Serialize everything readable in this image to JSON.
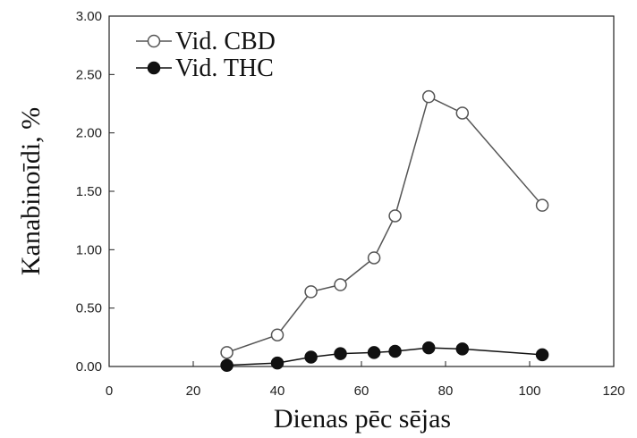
{
  "chart_data": {
    "type": "line",
    "xlabel": "Dienas pēc sējas",
    "ylabel": "Kanabinoīdi, %",
    "xlim": [
      0,
      120
    ],
    "xticks": [
      0,
      20,
      40,
      60,
      80,
      100,
      120
    ],
    "ylim": [
      0,
      3
    ],
    "yticks": [
      {
        "value": 0,
        "label": "0.00"
      },
      {
        "value": 0.5,
        "label": "0.50"
      },
      {
        "value": 1,
        "label": "1.00"
      },
      {
        "value": 1.5,
        "label": "1.50"
      },
      {
        "value": 2,
        "label": "2.00"
      },
      {
        "value": 2.5,
        "label": "2.50"
      },
      {
        "value": 3,
        "label": "3.00"
      }
    ],
    "legend": "upper left",
    "series": [
      {
        "name": "Vid. CBD",
        "color": "#555555",
        "marker_fill": "#ffffff",
        "x": [
          28,
          40,
          48,
          55,
          63,
          68,
          76,
          84,
          103
        ],
        "values": [
          0.12,
          0.27,
          0.64,
          0.7,
          0.93,
          1.29,
          2.31,
          2.17,
          1.38
        ]
      },
      {
        "name": "Vid. THC",
        "color": "#111111",
        "marker_fill": "#111111",
        "x": [
          28,
          40,
          48,
          55,
          63,
          68,
          76,
          84,
          103
        ],
        "values": [
          0.01,
          0.03,
          0.08,
          0.11,
          0.12,
          0.13,
          0.16,
          0.15,
          0.1
        ]
      }
    ]
  }
}
